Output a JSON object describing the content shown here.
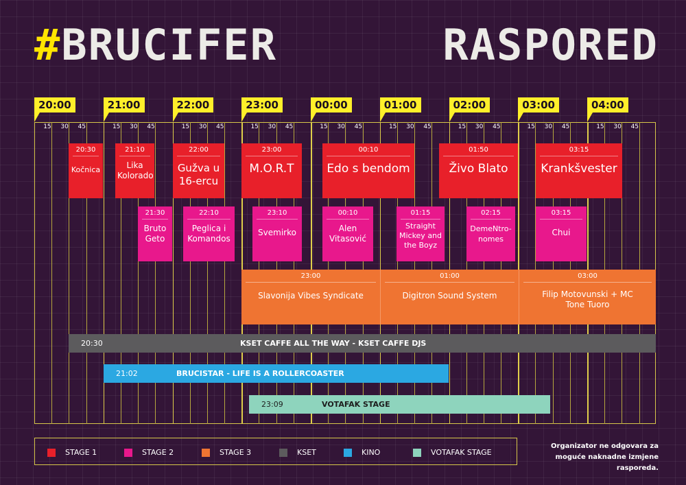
{
  "header": {
    "hash": "#",
    "title_left": "BRUCIFER",
    "title_right": "RASPORED"
  },
  "timeline": {
    "hours": [
      "20:00",
      "21:00",
      "22:00",
      "23:00",
      "00:00",
      "01:00",
      "02:00",
      "03:00",
      "04:00"
    ],
    "minute_marks": [
      "15",
      "30",
      "45"
    ]
  },
  "stage1": [
    {
      "time": "20:30",
      "name": "Kočnica"
    },
    {
      "time": "21:10",
      "name": "Lika Kolorado"
    },
    {
      "time": "22:00",
      "name": "Gužva u 16-ercu"
    },
    {
      "time": "23:00",
      "name": "M.O.R.T"
    },
    {
      "time": "00:10",
      "name": "Edo s bendom"
    },
    {
      "time": "01:50",
      "name": "Živo Blato"
    },
    {
      "time": "03:15",
      "name": "Krankšvester"
    }
  ],
  "stage2": [
    {
      "time": "21:30",
      "name": "Bruto Geto"
    },
    {
      "time": "22:10",
      "name": "Peglica i Komandos"
    },
    {
      "time": "23:10",
      "name": "Svemirko"
    },
    {
      "time": "00:10",
      "name": "Alen Vitasović"
    },
    {
      "time": "01:15",
      "name": "Straight Mickey and the Boyz"
    },
    {
      "time": "02:15",
      "name": "DemeNtro-nomes"
    },
    {
      "time": "03:15",
      "name": "Chui"
    }
  ],
  "stage3": [
    {
      "time": "23:00",
      "name": "Slavonija Vibes Syndicate"
    },
    {
      "time": "01:00",
      "name": "Digitron Sound System"
    },
    {
      "time": "03:00",
      "name": "Filip Motovunski + MC Tone Tuoro"
    }
  ],
  "bars": [
    {
      "time": "20:30",
      "name": "KSET CAFFE ALL THE WAY - KSET CAFFE DJS"
    },
    {
      "time": "21:02",
      "name": "BRUCISTAR - LIFE IS A ROLLERCOASTER"
    },
    {
      "time": "23:09",
      "name": "VOTAFAK STAGE"
    }
  ],
  "legend": [
    {
      "label": "STAGE 1",
      "color": "#e8202a"
    },
    {
      "label": "STAGE 2",
      "color": "#e8188c"
    },
    {
      "label": "STAGE 3",
      "color": "#ef7432"
    },
    {
      "label": "KSET",
      "color": "#5c5b5d"
    },
    {
      "label": "KINO",
      "color": "#2ba8e2"
    },
    {
      "label": "VOTAFAK STAGE",
      "color": "#8ed4bd"
    }
  ],
  "note": "Organizator ne odgovara za moguće naknadne izmjene rasporeda."
}
